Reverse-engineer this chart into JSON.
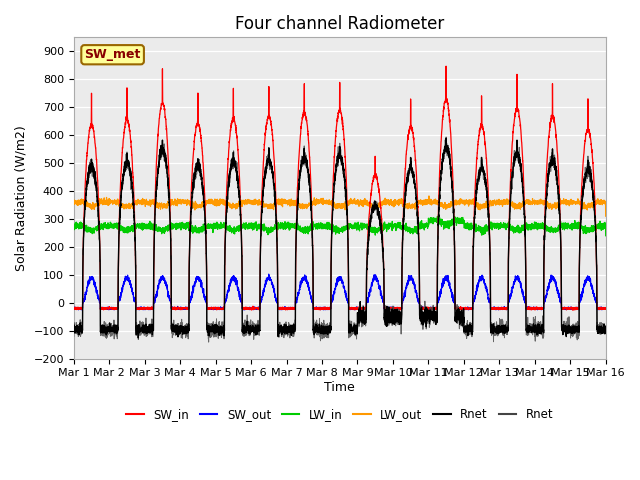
{
  "title": "Four channel Radiometer",
  "xlabel": "Time",
  "ylabel": "Solar Radiation (W/m2)",
  "ylim": [
    -200,
    950
  ],
  "yticks": [
    -200,
    -100,
    0,
    100,
    200,
    300,
    400,
    500,
    600,
    700,
    800,
    900
  ],
  "n_days": 15,
  "points_per_day": 288,
  "plot_bg_color": "#ebebeb",
  "SW_in_color": "#ff0000",
  "SW_out_color": "#0000ff",
  "LW_in_color": "#00cc00",
  "LW_out_color": "#ff9900",
  "Rnet_color": "#000000",
  "Rnet2_color": "#444444",
  "annotation_text": "SW_met",
  "annotation_bg": "#ffff99",
  "annotation_border": "#996600",
  "x_tick_labels": [
    "Mar 1",
    "Mar 2",
    "Mar 3",
    "Mar 4",
    "Mar 5",
    "Mar 6",
    "Mar 7",
    "Mar 8",
    "Mar 9",
    "Mar 10",
    "Mar 11",
    "Mar 12",
    "Mar 13",
    "Mar 14",
    "Mar 15",
    "Mar 16"
  ],
  "legend_labels": [
    "SW_in",
    "SW_out",
    "LW_in",
    "LW_out",
    "Rnet",
    "Rnet"
  ],
  "legend_colors": [
    "#ff0000",
    "#0000ff",
    "#00cc00",
    "#ff9900",
    "#000000",
    "#444444"
  ],
  "SW_in_peaks": [
    750,
    770,
    840,
    755,
    775,
    785,
    800,
    810,
    535,
    740,
    855,
    745,
    820,
    785,
    730
  ],
  "day_start": 0.25,
  "day_end": 0.75
}
